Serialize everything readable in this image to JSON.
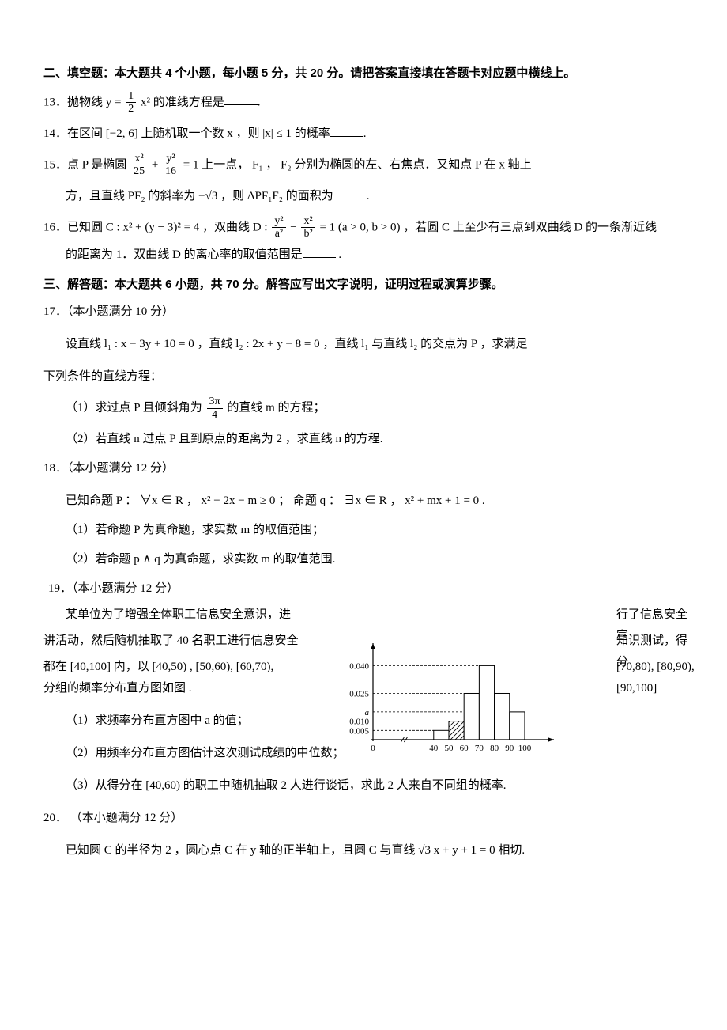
{
  "section2": {
    "title": "二、填空题：本大题共 4 个小题，每小题 5 分，共 20 分。请把答案直接填在答题卡对应题中横线上。"
  },
  "q13": {
    "num": "13．",
    "pre": "抛物线 ",
    "eq_l": "y = ",
    "frac_num": "1",
    "frac_den": "2",
    "eq_r": " x²",
    "post": " 的准线方程是",
    "period": "."
  },
  "q14": {
    "num": "14．",
    "pre": "在区间 [−2, 6] 上随机取一个数 x ，则 |x| ≤ 1 的概率",
    "period": "."
  },
  "q15": {
    "num": "15．",
    "pre": "点 P 是椭圆 ",
    "f1n": "x²",
    "f1d": "25",
    "plus": " + ",
    "f2n": "y²",
    "f2d": "16",
    "eq1": " = 1",
    "post1": " 上一点， F₁ ， F₂ 分别为椭圆的左、右焦点．又知点 P 在 x 轴上",
    "line2a": "方，且直线 PF₂ 的斜率为 −√3 ，则 ΔPF₁F₂ 的面积为",
    "period": "."
  },
  "q16": {
    "num": "16．",
    "pre": "已知圆 C : x² + (y − 3)² = 4 ，双曲线 D : ",
    "f1n": "y²",
    "f1d": "a²",
    "minus": " − ",
    "f2n": "x²",
    "f2d": "b²",
    "eq1": " = 1 (a > 0, b > 0)",
    "post1": " ，若圆 C 上至少有三点到双曲线 D 的一条渐近线",
    "line2a": "的距离为 1．双曲线 D 的离心率的取值范围是",
    "period": " ."
  },
  "section3": {
    "title": "三、解答题：本大题共 6 小题，共 70 分。解答应写出文字说明，证明过程或演算步骤。"
  },
  "q17": {
    "num": "17．",
    "score": "（本小题满分 10 分）",
    "line1": "设直线 l₁ : x − 3y + 10 = 0 ，直线 l₂ : 2x + y − 8 = 0 ，直线 l₁ 与直线 l₂ 的交点为 P ，求满足",
    "line2": "下列条件的直线方程：",
    "p1a": "（1）求过点 P 且倾斜角为 ",
    "p1_fn": "3π",
    "p1_fd": "4",
    "p1b": " 的直线 m 的方程；",
    "p2": "（2）若直线 n 过点 P 且到原点的距离为 2 ，求直线 n 的方程."
  },
  "q18": {
    "num": "18．",
    "score": "（本小题满分 12 分）",
    "line1": "已知命题 P ： ∀x ∈ R ， x² − 2x − m ≥ 0 ；    命题 q ： ∃x ∈ R  ， x² + mx + 1 = 0 .",
    "p1": "（1）若命题 P 为真命题，求实数 m 的取值范围；",
    "p2": "（2）若命题 p ∧ q 为真命题，求实数 m 的取值范围."
  },
  "q19": {
    "num": "19．",
    "score": "（本小题满分 12 分）",
    "l1a": "某单位为了增强全体职工信息安全意识，进",
    "l1b": "行了信息安全宣",
    "l2a": "讲活动，然后随机抽取了 40 名职工进行信息安全",
    "l2b": "知识测试，得分",
    "l3a": "都在 [40,100] 内，以 [40,50) , [50,60), [60,70),",
    "l3b": "[70,80), [80,90), [90,100]",
    "l4": "分组的频率分布直方图如图 .",
    "p1": "（1）求频率分布直方图中 a 的值；",
    "p2": "（2）用频率分布直方图估计这次测试成绩的中位数；",
    "p3": "（3）从得分在 [40,60) 的职工中随机抽取 2 人进行谈话，求此 2 人来自不同组的概率."
  },
  "q20": {
    "num": "20．",
    "score": "（本小题满分 12 分）",
    "line1": "已知圆 C 的半径为 2 ，圆心点 C 在 y 轴的正半轴上，且圆 C 与直线 √3 x + y + 1 = 0 相切."
  },
  "histogram": {
    "yticks": [
      "0.040",
      "0.025",
      "a",
      "0.010",
      "0.005"
    ],
    "ytick_yvals": [
      0.04,
      0.025,
      0.015,
      0.01,
      0.005
    ],
    "xticks": [
      "0",
      "40",
      "50",
      "60",
      "70",
      "80",
      "90",
      "100"
    ],
    "xtick_xvals": [
      0,
      40,
      50,
      60,
      70,
      80,
      90,
      100
    ],
    "bars": [
      {
        "x0": 40,
        "x1": 50,
        "h": 0.005,
        "shade": "none"
      },
      {
        "x0": 50,
        "x1": 60,
        "h": 0.01,
        "shade": "diag"
      },
      {
        "x0": 60,
        "x1": 70,
        "h": 0.025,
        "shade": "none"
      },
      {
        "x0": 70,
        "x1": 80,
        "h": 0.04,
        "shade": "none"
      },
      {
        "x0": 80,
        "x1": 90,
        "h": 0.025,
        "shade": "none"
      },
      {
        "x0": 90,
        "x1": 100,
        "h": 0.015,
        "shade": "none"
      }
    ],
    "xlim": [
      0,
      112
    ],
    "ylim": [
      0,
      0.047
    ],
    "ylabel": " ",
    "xlabel": " ",
    "axis_color": "#000000",
    "grid_color": "#000000",
    "bar_border": "#000000",
    "bar_fill": "#ffffff",
    "break_mark": true
  }
}
